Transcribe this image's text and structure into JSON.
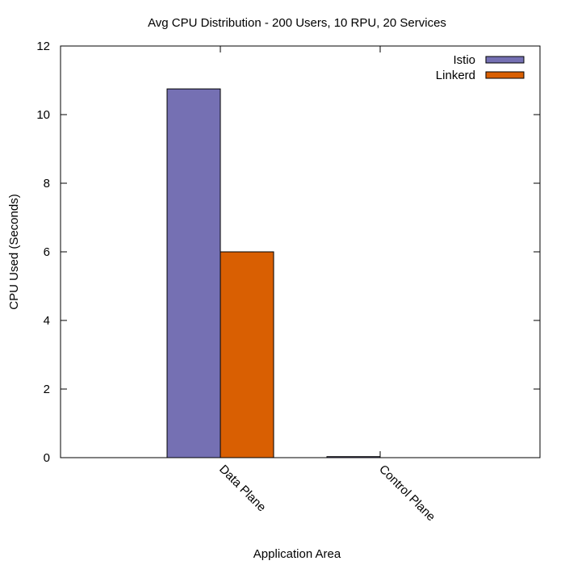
{
  "chart_data": {
    "type": "bar",
    "title": "Avg CPU Distribution - 200 Users, 10 RPU, 20 Services",
    "xlabel": "Application Area",
    "ylabel": "CPU Used (Seconds)",
    "categories": [
      "Data Plane",
      "Control Plane"
    ],
    "series": [
      {
        "name": "Istio",
        "color": "#7570b3",
        "values": [
          10.75,
          0.03
        ]
      },
      {
        "name": "Linkerd",
        "color": "#d95f02",
        "values": [
          6.0,
          0.0
        ]
      }
    ],
    "ylim": [
      0,
      12
    ],
    "yticks": [
      0,
      2,
      4,
      6,
      8,
      10,
      12
    ],
    "ytick_labels": [
      "0",
      "2",
      "4",
      "6",
      "8",
      "10",
      "12"
    ],
    "grid": false,
    "legend_position": "top-right"
  }
}
